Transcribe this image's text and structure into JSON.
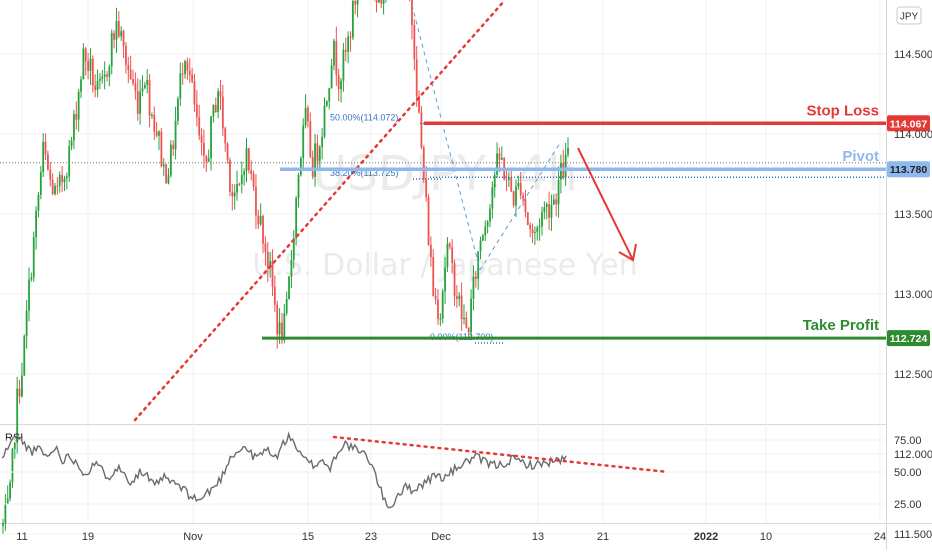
{
  "currency_badge": "JPY",
  "watermark": {
    "symbol": "USDJPY, 4h",
    "name": "U.S. Dollar / Japanese Yen"
  },
  "chart_data": {
    "type": "candlestick",
    "y_axis": {
      "ticks": [
        "114.500",
        "114.000",
        "113.500",
        "113.000",
        "112.500",
        "112.000",
        "111.500"
      ],
      "range": [
        111.45,
        115.3
      ]
    },
    "x_axis": {
      "ticks": [
        "11",
        "19",
        "Nov",
        "15",
        "23",
        "Dec",
        "13",
        "21",
        "2022",
        "10",
        "24"
      ],
      "tick_positions": [
        22,
        88,
        193,
        308,
        371,
        441,
        538,
        603,
        706,
        766,
        880
      ]
    },
    "price_levels": [
      {
        "name": "Stop Loss",
        "value": 114.067,
        "label": "114.067",
        "color": "#e53935"
      },
      {
        "name": "Pivot",
        "value": 113.78,
        "label": "113.780",
        "color": "#8fb8ed"
      },
      {
        "name": "Take Profit",
        "value": 112.724,
        "label": "112.724",
        "color": "#2e8b2e"
      }
    ],
    "fib_levels": [
      {
        "label": "50.00%(114.072)",
        "value": 114.072
      },
      {
        "label": "38.20%(113.725)",
        "value": 113.725
      },
      {
        "label": "0.00%(112.700)",
        "value": 112.7
      }
    ],
    "last_price_line": 113.82,
    "candle_series": [
      111.55,
      111.7,
      112.3,
      112.6,
      113.1,
      113.5,
      113.9,
      113.7,
      113.6,
      113.75,
      113.9,
      114.2,
      114.5,
      114.4,
      114.25,
      114.3,
      114.55,
      114.7,
      114.5,
      114.35,
      114.2,
      114.4,
      114.15,
      114.0,
      113.75,
      113.85,
      114.2,
      114.55,
      114.3,
      114.0,
      113.75,
      114.05,
      114.3,
      113.95,
      113.65,
      113.6,
      113.9,
      113.7,
      113.5,
      113.3,
      113.05,
      112.75,
      112.8,
      113.3,
      113.8,
      114.1,
      113.8,
      113.95,
      114.2,
      114.55,
      114.35,
      114.5,
      114.75,
      115.0,
      115.2,
      114.9,
      114.75,
      115.1,
      115.25,
      115.15,
      115.0,
      114.65,
      114.0,
      113.5,
      113.0,
      112.9,
      113.3,
      113.1,
      112.9,
      112.75,
      113.05,
      113.35,
      113.5,
      113.75,
      113.85,
      113.7,
      113.6,
      113.7,
      113.45,
      113.35,
      113.5,
      113.55,
      113.6,
      113.75,
      113.85
    ],
    "rsi": {
      "label": "RSI",
      "ticks": [
        "75.00",
        "50.00",
        "25.00"
      ],
      "range": [
        15,
        90
      ],
      "values": [
        60,
        72,
        78,
        71,
        66,
        68,
        61,
        70,
        59,
        63,
        55,
        48,
        57,
        52,
        46,
        54,
        49,
        42,
        50,
        47,
        38,
        46,
        43,
        40,
        35,
        30,
        28,
        34,
        39,
        48,
        63,
        66,
        70,
        61,
        64,
        68,
        60,
        74,
        78,
        64,
        58,
        55,
        60,
        52,
        66,
        72,
        69,
        65,
        62,
        48,
        30,
        22,
        33,
        38,
        36,
        40,
        44,
        48,
        45,
        50,
        55,
        58,
        62,
        59,
        56,
        55,
        57,
        60,
        58,
        56,
        55,
        57,
        58,
        59,
        60
      ]
    }
  }
}
